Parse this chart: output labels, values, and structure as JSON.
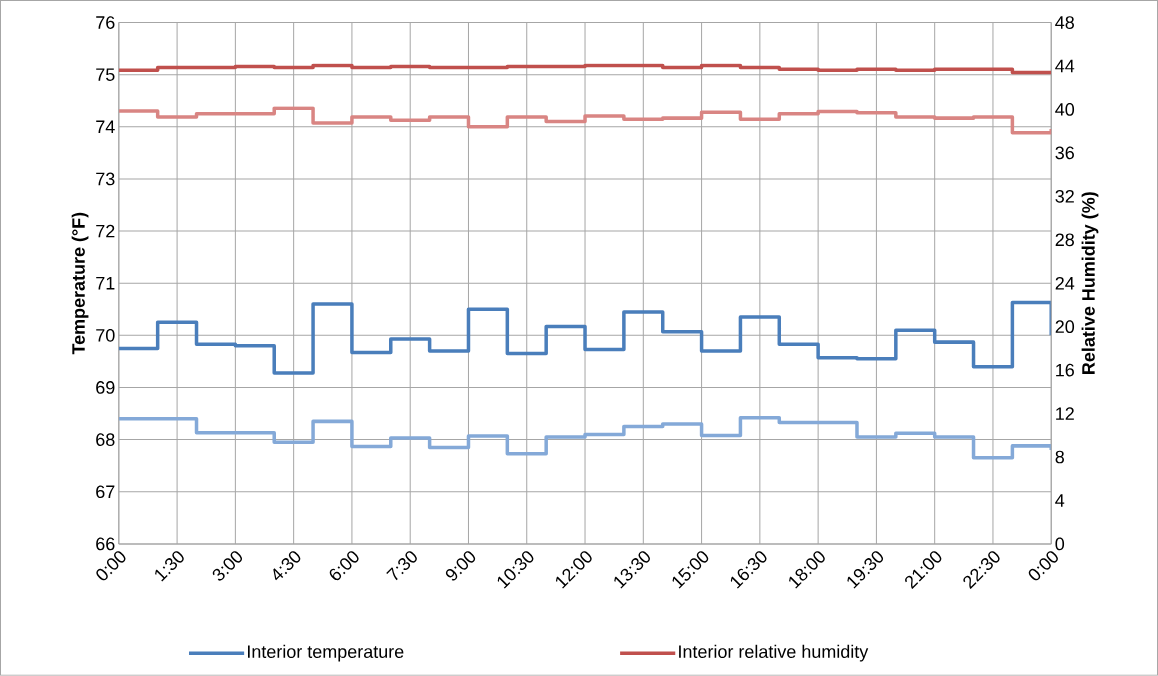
{
  "chart_data": {
    "type": "step",
    "ylabel": "Temperature (°F)",
    "y2label": "Relative Humidity (%)",
    "x": [
      0,
      1,
      2,
      3,
      4,
      5,
      6,
      7,
      8,
      9,
      10,
      11,
      12,
      13,
      14,
      15,
      16,
      17,
      18,
      19,
      20,
      21,
      22,
      23,
      24
    ],
    "xlim": [
      0,
      24
    ],
    "xticks": [
      {
        "value": 0,
        "label": "0:00"
      },
      {
        "value": 1.5,
        "label": "1:30"
      },
      {
        "value": 3,
        "label": "3:00"
      },
      {
        "value": 4.5,
        "label": "4:30"
      },
      {
        "value": 6,
        "label": "6:00"
      },
      {
        "value": 7.5,
        "label": "7:30"
      },
      {
        "value": 9,
        "label": "9:00"
      },
      {
        "value": 10.5,
        "label": "10:30"
      },
      {
        "value": 12,
        "label": "12:00"
      },
      {
        "value": 13.5,
        "label": "13:30"
      },
      {
        "value": 15,
        "label": "15:00"
      },
      {
        "value": 16.5,
        "label": "16:30"
      },
      {
        "value": 18,
        "label": "18:00"
      },
      {
        "value": 19.5,
        "label": "19:30"
      },
      {
        "value": 21,
        "label": "21:00"
      },
      {
        "value": 22.5,
        "label": "22:30"
      },
      {
        "value": 24,
        "label": "0:00"
      }
    ],
    "ylim": [
      66,
      76
    ],
    "yticks": [
      66,
      67,
      68,
      69,
      70,
      71,
      72,
      73,
      74,
      75,
      76
    ],
    "y2lim": [
      0,
      48
    ],
    "y2ticks": [
      0,
      4,
      8,
      12,
      16,
      20,
      24,
      28,
      32,
      36,
      40,
      44,
      48
    ],
    "grid": true,
    "legend": "bottom",
    "marker": "none",
    "series": [
      {
        "name": "Interior temperature",
        "color": "#4a7ebb",
        "values": [
          69.75,
          70.25,
          69.83,
          69.8,
          69.28,
          70.6,
          69.67,
          69.93,
          69.7,
          70.5,
          69.65,
          70.17,
          69.73,
          70.45,
          70.07,
          69.7,
          70.35,
          69.83,
          69.57,
          69.55,
          70.1,
          69.87,
          69.4,
          70.63,
          70.0
        ]
      },
      {
        "color": "#84a9d8",
        "values": [
          68.4,
          68.4,
          68.13,
          68.13,
          67.95,
          68.35,
          67.87,
          68.03,
          67.85,
          68.07,
          67.73,
          68.05,
          68.1,
          68.25,
          68.3,
          68.08,
          68.42,
          68.33,
          68.33,
          68.05,
          68.12,
          68.05,
          67.65,
          67.88,
          67.8
        ]
      },
      {
        "name": "Interior relative humidity",
        "color": "#c0504d",
        "axis": "y2",
        "values": [
          43.6,
          43.85,
          43.85,
          43.95,
          43.85,
          44.05,
          43.85,
          43.95,
          43.85,
          43.85,
          43.95,
          43.95,
          44.05,
          44.05,
          43.85,
          44.05,
          43.85,
          43.7,
          43.6,
          43.7,
          43.6,
          43.7,
          43.7,
          43.4,
          43.4
        ]
      },
      {
        "color": "#d98583",
        "axis": "y2",
        "values": [
          39.85,
          39.3,
          39.6,
          39.6,
          40.1,
          38.75,
          39.3,
          39.0,
          39.3,
          38.4,
          39.3,
          38.9,
          39.4,
          39.1,
          39.2,
          39.75,
          39.1,
          39.6,
          39.8,
          39.7,
          39.3,
          39.2,
          39.3,
          37.85,
          38.2
        ]
      }
    ]
  }
}
